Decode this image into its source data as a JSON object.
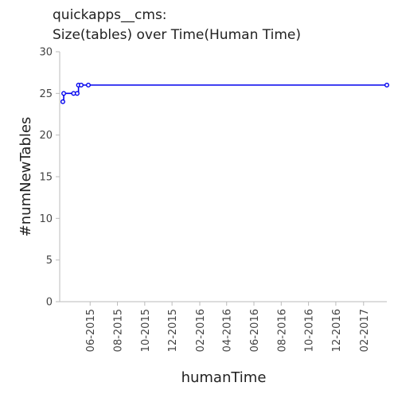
{
  "chart_data": {
    "type": "line",
    "title_lines": [
      "quickapps__cms:",
      "Size(tables) over Time(Human Time)"
    ],
    "xlabel": "humanTime",
    "ylabel": "#numNewTables",
    "ylim": [
      0,
      30
    ],
    "y_ticks": [
      0,
      5,
      10,
      15,
      20,
      25,
      30
    ],
    "x_ticks": [
      "06-2015",
      "08-2015",
      "10-2015",
      "12-2015",
      "02-2016",
      "04-2016",
      "06-2016",
      "08-2016",
      "10-2016",
      "12-2016",
      "02-2017"
    ],
    "xlim": [
      "2015-03-25",
      "2017-03-25"
    ],
    "grid": false,
    "series": [
      {
        "color": "#0000ee",
        "points": [
          {
            "x": "2015-04-01",
            "y": 24
          },
          {
            "x": "2015-04-03",
            "y": 25
          },
          {
            "x": "2015-04-25",
            "y": 25
          },
          {
            "x": "2015-05-03",
            "y": 25
          },
          {
            "x": "2015-05-06",
            "y": 26
          },
          {
            "x": "2015-05-12",
            "y": 26
          },
          {
            "x": "2015-05-28",
            "y": 26
          },
          {
            "x": "2017-03-25",
            "y": 26
          }
        ]
      }
    ]
  }
}
